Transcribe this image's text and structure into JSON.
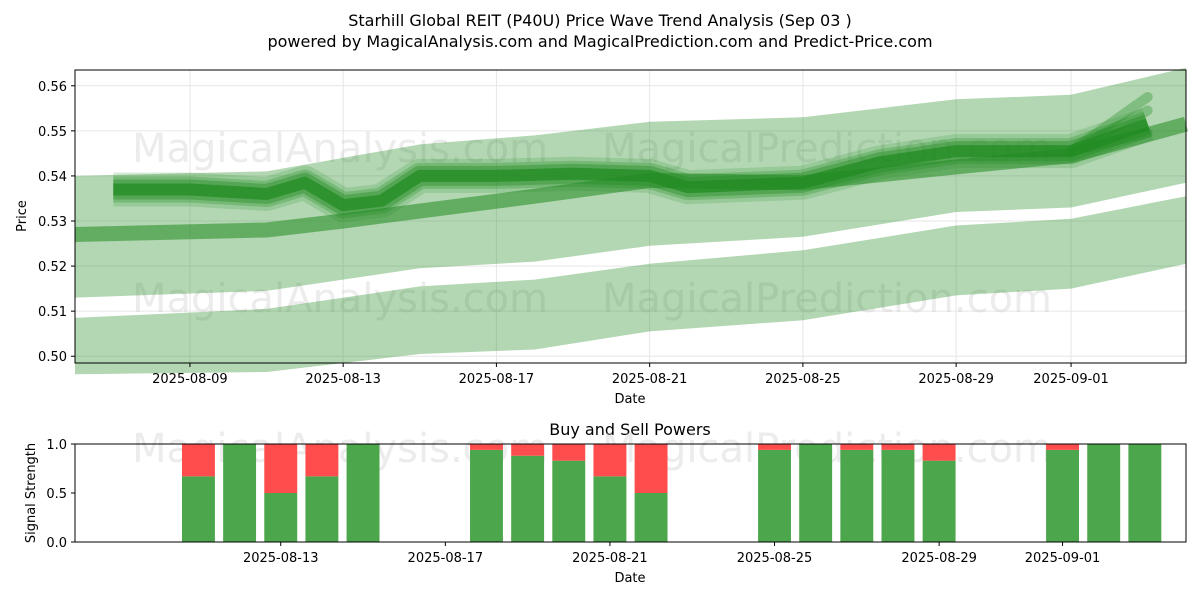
{
  "chart_data": [
    {
      "type": "area",
      "title": "Starhill Global REIT (P40U) Price Wave Trend Analysis (Sep 03 )",
      "subtitle": "powered by MagicalAnalysis.com and MagicalPrediction.com and Predict-Price.com",
      "xlabel": "Date",
      "ylabel": "Price",
      "x_ticks": [
        "2025-08-09",
        "2025-08-13",
        "2025-08-17",
        "2025-08-21",
        "2025-08-25",
        "2025-08-29",
        "2025-09-01"
      ],
      "y_ticks": [
        "0.50",
        "0.51",
        "0.52",
        "0.53",
        "0.54",
        "0.55",
        "0.56"
      ],
      "xlim": [
        "2025-08-06",
        "2025-09-04"
      ],
      "ylim": [
        0.4985,
        0.5635
      ],
      "grid": true,
      "color": "#228B22",
      "price_line": {
        "x": [
          "2025-08-07",
          "2025-08-09",
          "2025-08-11",
          "2025-08-12",
          "2025-08-13",
          "2025-08-14",
          "2025-08-15",
          "2025-08-17",
          "2025-08-19",
          "2025-08-21",
          "2025-08-22",
          "2025-08-25",
          "2025-08-27",
          "2025-08-29",
          "2025-08-31",
          "2025-09-01",
          "2025-09-03"
        ],
        "y": [
          0.537,
          0.537,
          0.536,
          0.5385,
          0.5335,
          0.5345,
          0.54,
          0.54,
          0.5405,
          0.54,
          0.5375,
          0.5385,
          0.543,
          0.5455,
          0.5455,
          0.5455,
          0.5515
        ]
      },
      "trend_line": {
        "x": [
          "2025-08-06",
          "2025-08-11",
          "2025-08-13",
          "2025-08-18",
          "2025-08-21",
          "2025-08-25",
          "2025-08-29",
          "2025-09-01",
          "2025-09-04"
        ],
        "y": [
          0.527,
          0.528,
          0.53,
          0.5355,
          0.539,
          0.5385,
          0.542,
          0.5445,
          0.5515
        ]
      },
      "upper_band": {
        "x": [
          "2025-08-06",
          "2025-08-11",
          "2025-08-15",
          "2025-08-18",
          "2025-08-21",
          "2025-08-25",
          "2025-08-29",
          "2025-09-01",
          "2025-09-04"
        ],
        "top": [
          0.54,
          0.541,
          0.547,
          0.549,
          0.552,
          0.553,
          0.557,
          0.558,
          0.564
        ],
        "bottom": [
          0.513,
          0.5145,
          0.5195,
          0.521,
          0.5245,
          0.5265,
          0.532,
          0.533,
          0.5385
        ]
      },
      "lower_band": {
        "x": [
          "2025-08-06",
          "2025-08-11",
          "2025-08-15",
          "2025-08-18",
          "2025-08-21",
          "2025-08-25",
          "2025-08-29",
          "2025-09-01",
          "2025-09-04"
        ],
        "top": [
          0.5085,
          0.5105,
          0.5155,
          0.517,
          0.5205,
          0.5235,
          0.529,
          0.5305,
          0.5355
        ],
        "bottom": [
          0.496,
          0.4965,
          0.5005,
          0.5015,
          0.5055,
          0.508,
          0.5135,
          0.515,
          0.5205
        ]
      }
    },
    {
      "type": "bar",
      "title": "Buy and Sell Powers",
      "xlabel": "Date",
      "ylabel": "Signal Strength",
      "x_ticks": [
        "2025-08-13",
        "2025-08-17",
        "2025-08-21",
        "2025-08-25",
        "2025-08-29",
        "2025-09-01"
      ],
      "y_ticks": [
        "0.0",
        "0.5",
        "1.0"
      ],
      "ylim": [
        0,
        1
      ],
      "xlim": [
        "2025-08-08",
        "2025-09-04"
      ],
      "buy_color": "#4CA64C",
      "sell_color": "#FF4D4D",
      "categories": [
        "2025-08-11",
        "2025-08-12",
        "2025-08-13",
        "2025-08-14",
        "2025-08-15",
        "2025-08-18",
        "2025-08-19",
        "2025-08-20",
        "2025-08-21",
        "2025-08-22",
        "2025-08-25",
        "2025-08-26",
        "2025-08-27",
        "2025-08-28",
        "2025-08-29",
        "2025-09-01",
        "2025-09-02",
        "2025-09-03"
      ],
      "series": [
        {
          "name": "Buy",
          "values": [
            0.67,
            1.0,
            0.5,
            0.67,
            1.0,
            0.94,
            0.88,
            0.83,
            0.67,
            0.5,
            0.94,
            1.0,
            0.94,
            0.94,
            0.83,
            0.94,
            1.0,
            1.0
          ]
        },
        {
          "name": "Sell",
          "values": [
            0.33,
            0.0,
            0.5,
            0.33,
            0.0,
            0.06,
            0.12,
            0.17,
            0.33,
            0.5,
            0.06,
            0.0,
            0.06,
            0.06,
            0.17,
            0.06,
            0.0,
            0.0
          ]
        }
      ]
    }
  ],
  "watermarks": [
    "MagicalAnalysis.com",
    "MagicalPrediction.com"
  ]
}
